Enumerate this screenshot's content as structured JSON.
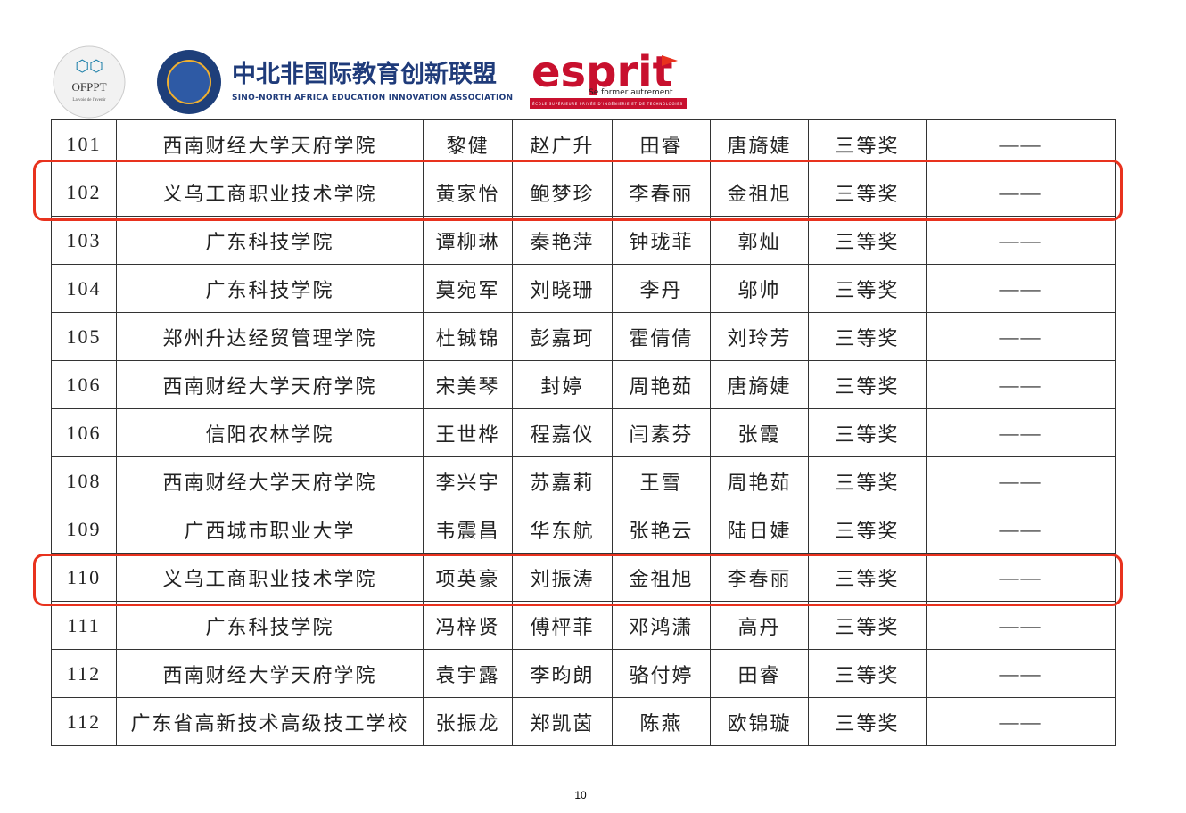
{
  "header": {
    "logo1": {
      "name": "OFPPT",
      "motto": "La voie de l'avenir"
    },
    "logo2": {
      "title": "中北非国际教育创新联盟",
      "subtitle": "SINO-NORTH AFRICA EDUCATION INNOVATION ASSOCIATION"
    },
    "logo3": {
      "name": "esprit",
      "tagline": "Se former autrement",
      "school": "ÉCOLE SUPÉRIEURE PRIVÉE D'INGÉNIERIE ET DE TECHNOLOGIES"
    }
  },
  "table": {
    "rows": [
      [
        "101",
        "西南财经大学天府学院",
        "黎健",
        "赵广升",
        "田睿",
        "唐旖婕",
        "三等奖",
        "——"
      ],
      [
        "102",
        "义乌工商职业技术学院",
        "黄家怡",
        "鲍梦珍",
        "李春丽",
        "金祖旭",
        "三等奖",
        "——"
      ],
      [
        "103",
        "广东科技学院",
        "谭柳琳",
        "秦艳萍",
        "钟珑菲",
        "郭灿",
        "三等奖",
        "——"
      ],
      [
        "104",
        "广东科技学院",
        "莫宛军",
        "刘晓珊",
        "李丹",
        "邬帅",
        "三等奖",
        "——"
      ],
      [
        "105",
        "郑州升达经贸管理学院",
        "杜铖锦",
        "彭嘉珂",
        "霍倩倩",
        "刘玲芳",
        "三等奖",
        "——"
      ],
      [
        "106",
        "西南财经大学天府学院",
        "宋美琴",
        "封婷",
        "周艳茹",
        "唐旖婕",
        "三等奖",
        "——"
      ],
      [
        "106",
        "信阳农林学院",
        "王世桦",
        "程嘉仪",
        "闫素芬",
        "张霞",
        "三等奖",
        "——"
      ],
      [
        "108",
        "西南财经大学天府学院",
        "李兴宇",
        "苏嘉莉",
        "王雪",
        "周艳茹",
        "三等奖",
        "——"
      ],
      [
        "109",
        "广西城市职业大学",
        "韦震昌",
        "华东航",
        "张艳云",
        "陆日婕",
        "三等奖",
        "——"
      ],
      [
        "110",
        "义乌工商职业技术学院",
        "项英豪",
        "刘振涛",
        "金祖旭",
        "李春丽",
        "三等奖",
        "——"
      ],
      [
        "111",
        "广东科技学院",
        "冯梓贤",
        "傅枰菲",
        "邓鸿潇",
        "高丹",
        "三等奖",
        "——"
      ],
      [
        "112",
        "西南财经大学天府学院",
        "袁宇露",
        "李昀朗",
        "骆付婷",
        "田睿",
        "三等奖",
        "——"
      ],
      [
        "112",
        "广东省高新技术高级技工学校",
        "张振龙",
        "郑凯茵",
        "陈燕",
        "欧锦璇",
        "三等奖",
        "——"
      ]
    ]
  },
  "footer": {
    "page_number": "10"
  }
}
